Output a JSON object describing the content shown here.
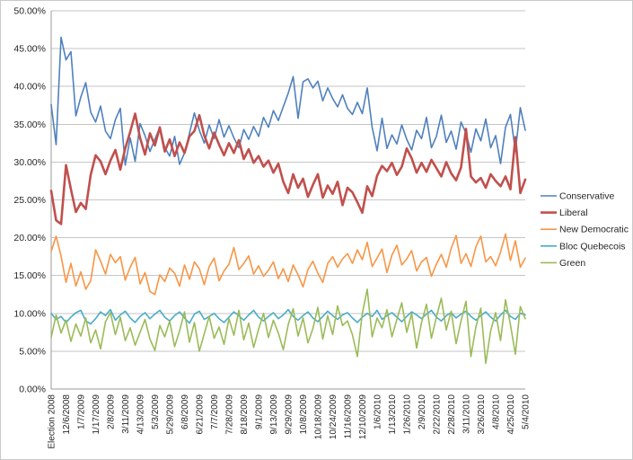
{
  "chart_data": {
    "type": "line",
    "title": "",
    "xlabel": "",
    "ylabel": "",
    "ylim": [
      0,
      50
    ],
    "grid": true,
    "legend_position": "right",
    "y_ticks": [
      "0.00%",
      "5.00%",
      "10.00%",
      "15.00%",
      "20.00%",
      "25.00%",
      "30.00%",
      "35.00%",
      "40.00%",
      "45.00%",
      "50.00%"
    ],
    "y_tick_values": [
      0,
      5,
      10,
      15,
      20,
      25,
      30,
      35,
      40,
      45,
      50
    ],
    "x_labels": [
      "Election 2008",
      "12/6/2008",
      "1/7/2009",
      "1/17/2009",
      "2/8/2009",
      "3/11/2009",
      "4/13/2009",
      "5/3/2009",
      "5/29/2009",
      "6/8/2009",
      "6/21/2009",
      "7/7/2009",
      "7/28/2009",
      "8/18/2009",
      "9/1/2009",
      "9/13/2009",
      "9/29/2009",
      "10/8/2009",
      "10/18/2009",
      "10/24/2009",
      "11/16/2009",
      "12/10/2009",
      "1/6/2010",
      "1/13/2010",
      "1/26/2010",
      "2/9/2010",
      "2/22/2010",
      "2/28/2010",
      "3/11/2010",
      "3/26/2010",
      "4/8/2010",
      "4/25/2010",
      "5/4/2010"
    ],
    "points_per_label_interval": 3,
    "colors": {
      "gridline": "#C6C6C6",
      "axis": "#9B9B9B",
      "text": "#262626",
      "border": "#C9C9C9",
      "background": "#FFFFFF"
    },
    "series": [
      {
        "name": "Conservative",
        "color": "#4F81BD",
        "width": 1.6,
        "values": [
          37.6,
          32.3,
          46.5,
          43.5,
          44.6,
          36.1,
          38.6,
          40.5,
          36.6,
          35.3,
          37.4,
          34.1,
          33.1,
          35.6,
          37.1,
          29.6,
          33.2,
          30.1,
          35.1,
          33.5,
          31.4,
          33.0,
          34.6,
          31.9,
          30.8,
          33.4,
          29.7,
          31.2,
          33.8,
          36.5,
          34.2,
          32.5,
          34.9,
          33.1,
          35.6,
          33.3,
          34.8,
          33.2,
          31.9,
          34.3,
          33.0,
          34.7,
          33.4,
          35.9,
          34.6,
          36.8,
          35.5,
          37.3,
          39.1,
          41.3,
          35.8,
          40.6,
          41.0,
          39.8,
          40.7,
          38.1,
          39.8,
          38.4,
          37.3,
          38.9,
          37.1,
          36.3,
          37.9,
          36.4,
          39.8,
          34.6,
          31.5,
          35.8,
          31.8,
          33.6,
          32.4,
          34.9,
          33.0,
          31.6,
          34.2,
          33.1,
          35.9,
          31.9,
          33.4,
          36.2,
          32.6,
          34.1,
          31.7,
          35.3,
          33.8,
          31.3,
          34.4,
          32.8,
          35.7,
          31.9,
          33.5,
          29.8,
          34.6,
          36.3,
          31.4,
          37.2,
          34.2
        ]
      },
      {
        "name": "Liberal",
        "color": "#C0504D",
        "width": 2.6,
        "values": [
          26.2,
          22.3,
          21.8,
          29.6,
          26.4,
          23.4,
          24.6,
          23.8,
          28.3,
          30.9,
          30.1,
          28.4,
          30.2,
          31.6,
          29.0,
          31.8,
          34.0,
          36.4,
          33.2,
          31.0,
          33.8,
          32.2,
          34.6,
          31.4,
          33.0,
          30.8,
          32.6,
          31.2,
          33.4,
          34.1,
          36.2,
          33.5,
          31.8,
          33.9,
          32.3,
          30.9,
          32.5,
          31.2,
          32.9,
          30.4,
          31.7,
          29.9,
          30.8,
          29.4,
          30.2,
          28.6,
          29.8,
          27.4,
          25.9,
          28.4,
          26.6,
          27.8,
          25.4,
          27.0,
          28.4,
          25.3,
          26.9,
          25.8,
          27.4,
          24.3,
          26.6,
          26.0,
          24.7,
          23.3,
          26.8,
          25.5,
          28.2,
          29.5,
          28.8,
          29.9,
          28.3,
          29.4,
          31.8,
          30.5,
          28.6,
          29.9,
          28.7,
          30.3,
          29.2,
          28.1,
          30.0,
          28.5,
          27.6,
          29.3,
          34.4,
          28.1,
          27.3,
          27.9,
          26.6,
          28.4,
          27.5,
          26.8,
          28.1,
          26.4,
          33.3,
          25.9,
          27.7
        ]
      },
      {
        "name": "New Democratic",
        "color": "#F79646",
        "width": 1.6,
        "values": [
          18.2,
          20.2,
          17.6,
          14.1,
          16.6,
          13.6,
          15.5,
          13.2,
          14.3,
          18.4,
          16.9,
          15.2,
          17.8,
          16.7,
          17.5,
          14.4,
          16.1,
          17.4,
          13.9,
          15.4,
          12.9,
          12.5,
          15.1,
          14.2,
          16.0,
          15.3,
          13.6,
          16.4,
          14.5,
          16.8,
          15.9,
          13.8,
          16.2,
          17.3,
          14.3,
          15.6,
          16.5,
          18.7,
          15.8,
          16.6,
          17.6,
          15.2,
          16.3,
          14.9,
          15.7,
          16.8,
          14.6,
          15.9,
          14.2,
          16.4,
          15.1,
          13.5,
          15.8,
          16.9,
          15.3,
          14.1,
          16.6,
          17.5,
          16.1,
          17.2,
          17.9,
          16.6,
          18.4,
          17.1,
          19.4,
          16.2,
          17.3,
          18.5,
          15.4,
          17.7,
          19.0,
          16.4,
          17.2,
          18.3,
          15.6,
          16.8,
          17.4,
          14.9,
          16.5,
          17.8,
          16.1,
          18.6,
          20.3,
          16.6,
          17.9,
          16.2,
          18.8,
          20.2,
          16.8,
          17.5,
          16.3,
          18.1,
          20.5,
          17.0,
          19.6,
          16.1,
          17.3
        ]
      },
      {
        "name": "Bloc Quebecois",
        "color": "#4BACC6",
        "width": 1.6,
        "values": [
          10.0,
          9.2,
          9.6,
          8.8,
          9.5,
          10.1,
          10.4,
          9.0,
          8.6,
          9.3,
          10.2,
          9.7,
          10.5,
          9.1,
          9.8,
          10.3,
          9.4,
          8.8,
          9.6,
          10.1,
          9.3,
          9.9,
          10.4,
          9.5,
          9.0,
          9.7,
          10.2,
          9.4,
          8.7,
          9.9,
          10.3,
          9.2,
          9.6,
          10.0,
          9.3,
          8.8,
          9.5,
          10.2,
          9.7,
          9.1,
          9.8,
          10.4,
          9.5,
          9.0,
          9.6,
          10.1,
          9.3,
          9.8,
          10.5,
          9.6,
          9.1,
          9.7,
          10.2,
          9.4,
          8.9,
          9.6,
          10.3,
          9.7,
          9.2,
          9.8,
          10.1,
          9.4,
          8.8,
          9.5,
          10.0,
          9.6,
          10.4,
          9.2,
          9.7,
          10.1,
          9.5,
          8.9,
          9.6,
          10.2,
          9.8,
          9.3,
          9.9,
          10.4,
          9.5,
          9.0,
          9.7,
          10.1,
          9.4,
          9.9,
          10.3,
          9.6,
          9.1,
          9.7,
          10.2,
          9.5,
          9.0,
          9.8,
          10.4,
          9.6,
          9.2,
          10.0,
          9.8
        ]
      },
      {
        "name": "Green",
        "color": "#9BBB59",
        "width": 1.6,
        "values": [
          6.8,
          9.8,
          7.4,
          9.1,
          6.3,
          8.6,
          7.0,
          9.4,
          6.1,
          7.8,
          5.3,
          8.9,
          10.1,
          7.2,
          9.5,
          6.4,
          8.1,
          5.8,
          7.5,
          9.2,
          6.6,
          5.1,
          8.4,
          6.9,
          9.0,
          5.6,
          7.7,
          10.2,
          6.2,
          8.8,
          5.0,
          7.3,
          9.6,
          6.7,
          8.2,
          5.9,
          9.3,
          7.1,
          10.4,
          6.5,
          8.7,
          5.5,
          7.9,
          10.0,
          6.8,
          9.1,
          7.4,
          5.2,
          8.5,
          10.6,
          7.0,
          9.4,
          6.1,
          8.0,
          10.8,
          6.6,
          9.7,
          7.2,
          11.0,
          8.4,
          9.0,
          7.2,
          4.3,
          10.0,
          13.2,
          6.9,
          9.4,
          8.1,
          10.5,
          6.9,
          9.2,
          11.4,
          7.5,
          10.0,
          5.4,
          8.8,
          11.2,
          6.7,
          9.5,
          12.0,
          7.8,
          10.3,
          6.0,
          9.0,
          11.6,
          4.3,
          8.2,
          10.7,
          3.4,
          7.7,
          10.1,
          6.4,
          11.8,
          8.5,
          4.6,
          10.9,
          9.3
        ]
      }
    ],
    "legend": {
      "items": [
        "Conservative",
        "Liberal",
        "New Democratic",
        "Bloc Quebecois",
        "Green"
      ]
    }
  }
}
